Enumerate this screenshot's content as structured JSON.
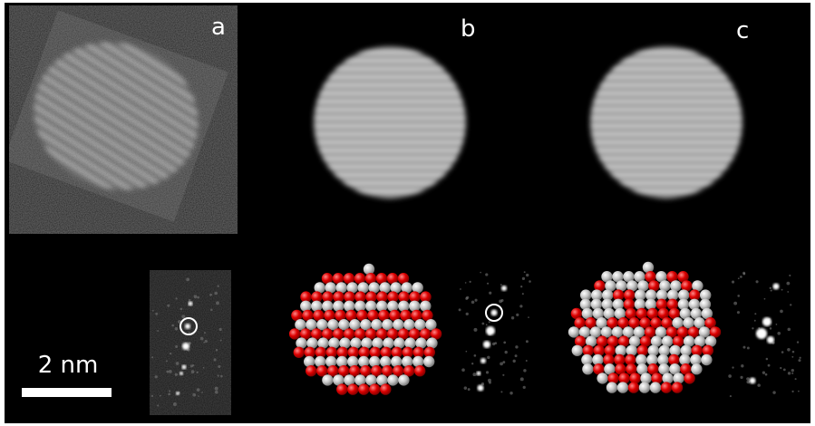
{
  "panels": [
    {
      "label": "a"
    },
    {
      "label": "b"
    },
    {
      "label": "c"
    }
  ],
  "scale_bar": {
    "label": "2 nm"
  }
}
